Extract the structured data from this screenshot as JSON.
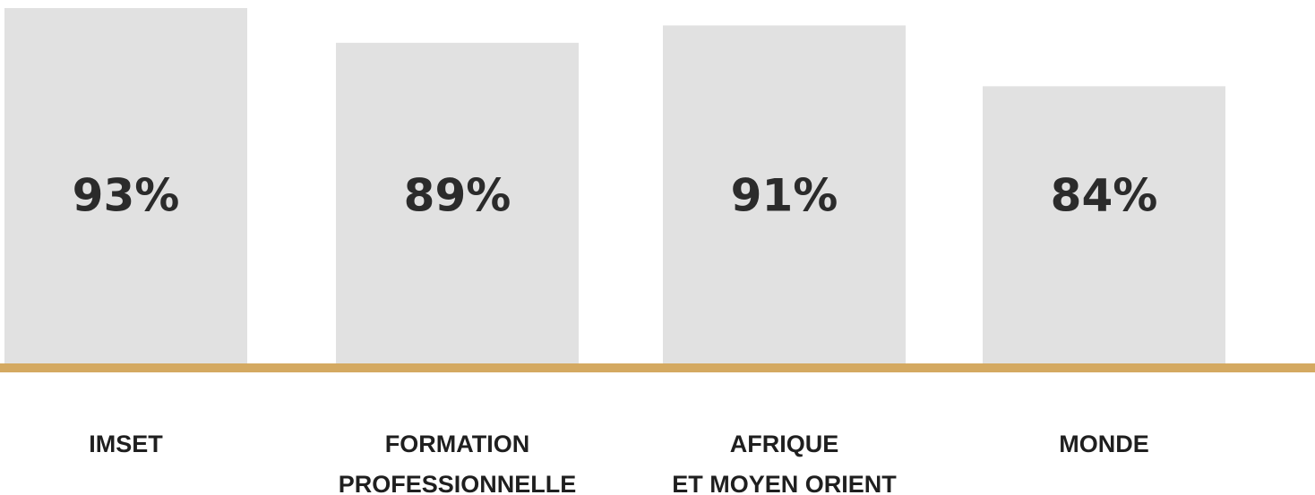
{
  "chart_data": {
    "type": "bar",
    "categories": [
      "IMSET",
      "FORMATION\nPROFESSIONNELLE",
      "AFRIQUE\nET MOYEN ORIENT",
      "MONDE"
    ],
    "values": [
      93,
      89,
      91,
      84
    ],
    "value_labels": [
      "93%",
      "89%",
      "91%",
      "84%"
    ],
    "color": "#e1e1e1",
    "baseline_color": "#d4a961",
    "ylim": [
      52,
      93
    ]
  }
}
